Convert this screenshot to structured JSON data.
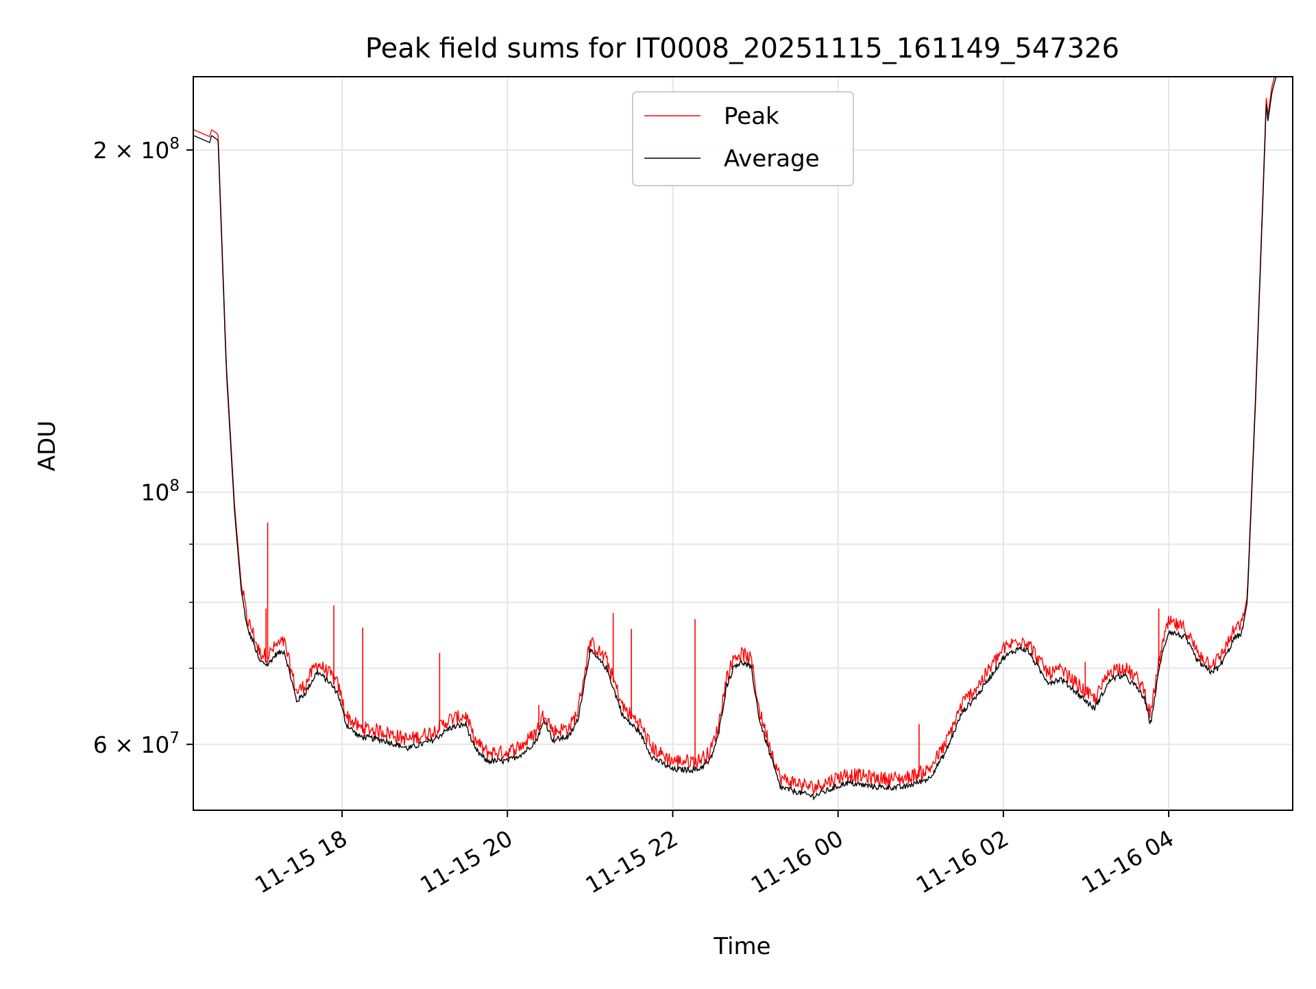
{
  "chart_data": {
    "type": "line",
    "title": "Peak field sums for IT0008_20251115_161149_547326",
    "xlabel": "Time",
    "ylabel": "ADU",
    "yscale": "log",
    "ylim": [
      52500000,
      232000000
    ],
    "xlim_hours_after_2025_11_15_00": [
      16.2,
      29.5
    ],
    "grid": true,
    "legend_position": "top-center",
    "x_ticks": [
      {
        "h": 18,
        "label": "11-15 18"
      },
      {
        "h": 20,
        "label": "11-15 20"
      },
      {
        "h": 22,
        "label": "11-15 22"
      },
      {
        "h": 24,
        "label": "11-16 00"
      },
      {
        "h": 26,
        "label": "11-16 02"
      },
      {
        "h": 28,
        "label": "11-16 04"
      }
    ],
    "y_major_ticks": [
      {
        "v": 100000000,
        "base": "10",
        "exp": "8",
        "coef": ""
      },
      {
        "v": 200000000,
        "base": "10",
        "exp": "8",
        "coef": "2 × "
      },
      {
        "v": 60000000,
        "base": "10",
        "exp": "7",
        "coef": "6 × "
      }
    ],
    "y_minor_ticks": [
      70000000,
      80000000,
      90000000
    ],
    "series": [
      {
        "name": "Peak",
        "color": "#ff0000",
        "spikes": [
          {
            "h": 17.08,
            "v": 79000000
          },
          {
            "h": 17.1,
            "v": 94000000
          },
          {
            "h": 17.9,
            "v": 79500000
          },
          {
            "h": 18.25,
            "v": 76000000
          },
          {
            "h": 19.18,
            "v": 72200000
          },
          {
            "h": 20.38,
            "v": 65000000
          },
          {
            "h": 21.28,
            "v": 78300000
          },
          {
            "h": 21.5,
            "v": 75800000
          },
          {
            "h": 22.27,
            "v": 77300000
          },
          {
            "h": 24.98,
            "v": 62500000
          },
          {
            "h": 26.99,
            "v": 70900000
          },
          {
            "h": 27.88,
            "v": 79000000
          }
        ]
      },
      {
        "name": "Average",
        "color": "#000000",
        "x_hours": [
          16.2,
          16.4,
          16.42,
          16.5,
          16.6,
          16.7,
          16.78,
          16.85,
          16.92,
          17.0,
          17.1,
          17.2,
          17.3,
          17.45,
          17.55,
          17.7,
          17.85,
          17.95,
          18.05,
          18.2,
          18.5,
          18.8,
          19.1,
          19.3,
          19.5,
          19.6,
          19.75,
          20.0,
          20.2,
          20.35,
          20.45,
          20.55,
          20.75,
          20.85,
          21.0,
          21.2,
          21.4,
          21.6,
          21.75,
          22.0,
          22.3,
          22.45,
          22.55,
          22.65,
          22.75,
          22.85,
          22.95,
          23.05,
          23.3,
          23.7,
          24.1,
          24.5,
          24.8,
          25.1,
          25.3,
          25.5,
          25.7,
          26.0,
          26.2,
          26.3,
          26.45,
          26.55,
          26.7,
          26.9,
          27.1,
          27.3,
          27.45,
          27.6,
          27.7,
          27.78,
          27.9,
          28.0,
          28.2,
          28.35,
          28.5,
          28.6,
          28.7,
          28.8,
          28.88,
          28.95,
          29.05,
          29.15,
          29.18,
          29.2,
          29.25,
          29.3,
          29.35
        ],
        "values": [
          206000000,
          203000000,
          206000000,
          204000000,
          128000000,
          96000000,
          82000000,
          76000000,
          74000000,
          71000000,
          70500000,
          72000000,
          72500000,
          65500000,
          66500000,
          69500000,
          68000000,
          66500000,
          62500000,
          61000000,
          60500000,
          59500000,
          60500000,
          62000000,
          62500000,
          59500000,
          58000000,
          58000000,
          59000000,
          60500000,
          63000000,
          60500000,
          61000000,
          63000000,
          72500000,
          70000000,
          63500000,
          61500000,
          58500000,
          57000000,
          57000000,
          58000000,
          61000000,
          67500000,
          70500000,
          70800000,
          70000000,
          63000000,
          55000000,
          54000000,
          55500000,
          55000000,
          55000000,
          56000000,
          59000000,
          64000000,
          66500000,
          71500000,
          73000000,
          72500000,
          69500000,
          68000000,
          68500000,
          66500000,
          64500000,
          68500000,
          69000000,
          67500000,
          66000000,
          62500000,
          71000000,
          75500000,
          74500000,
          71000000,
          69500000,
          70000000,
          72000000,
          74500000,
          75000000,
          80000000,
          120000000,
          190000000,
          220000000,
          212000000,
          225000000,
          232000000,
          232000000
        ]
      }
    ]
  }
}
